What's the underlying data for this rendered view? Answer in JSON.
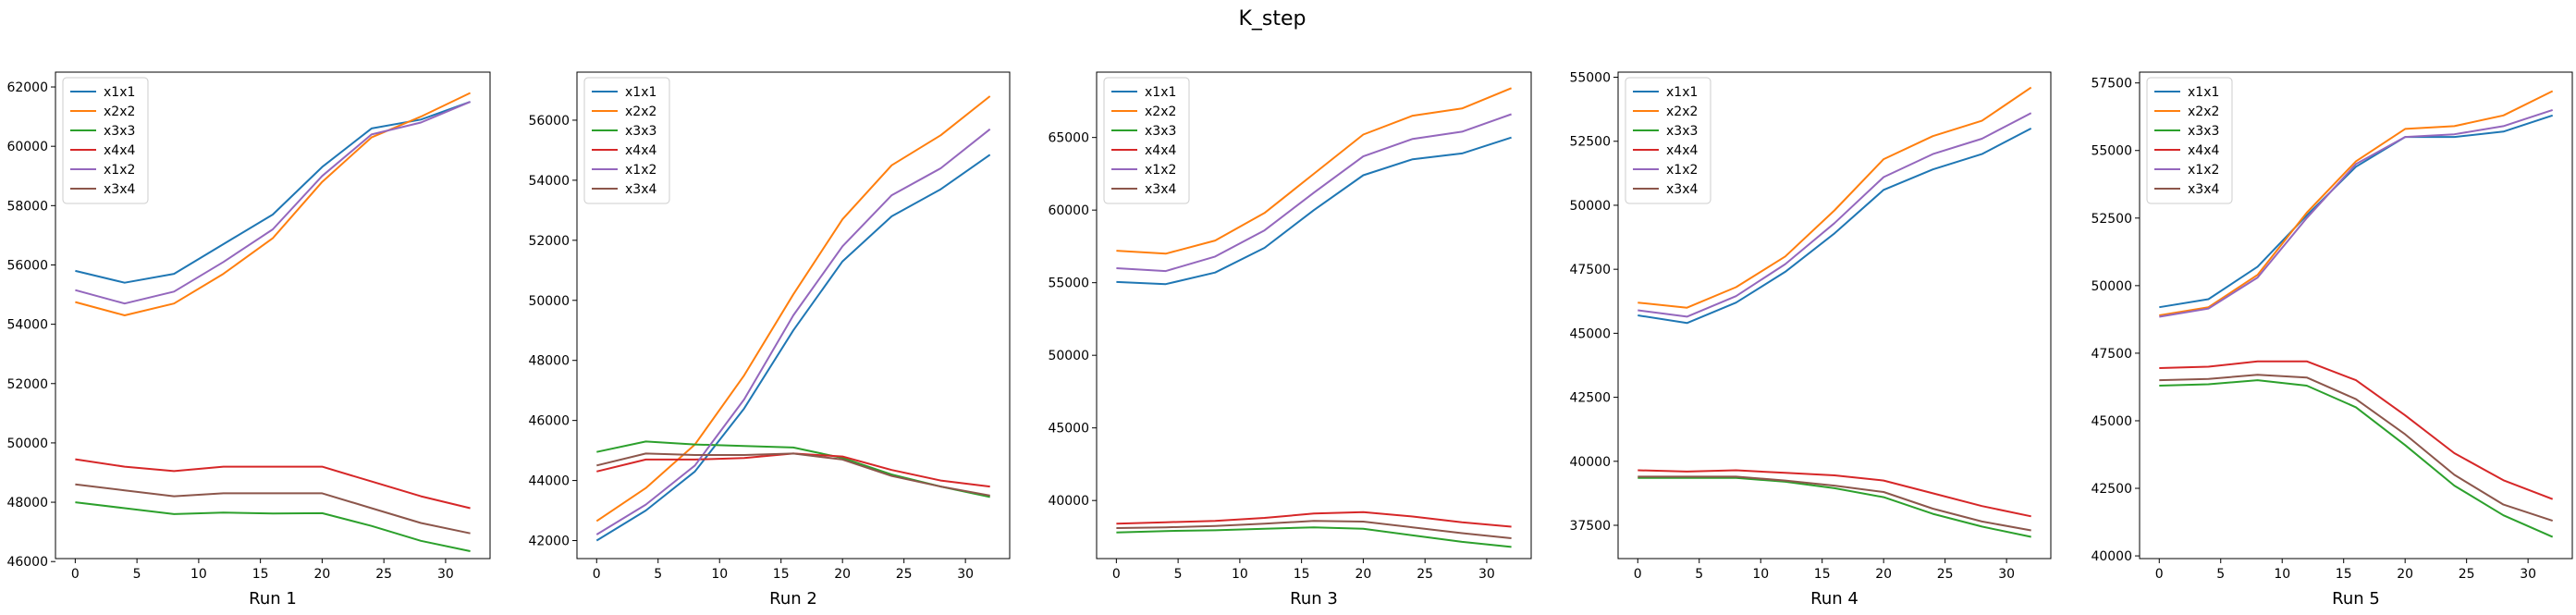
{
  "figure": {
    "title": "K_step"
  },
  "chart_data": [
    {
      "type": "line",
      "xlabel": "Run 1",
      "x": [
        0,
        4,
        8,
        12,
        16,
        20,
        24,
        28,
        32
      ],
      "xticks": [
        0,
        5,
        10,
        15,
        20,
        25,
        30
      ],
      "xlim": [
        -1.6,
        33.6
      ],
      "ylim": [
        46100,
        62500
      ],
      "yticks": [
        46000,
        48000,
        50000,
        52000,
        54000,
        56000,
        58000,
        60000,
        62000
      ],
      "legend_position": "upper-left",
      "series": [
        {
          "name": "x1x1",
          "color": "#1f77b4",
          "values": [
            55800,
            55400,
            55700,
            56700,
            57700,
            59300,
            60600,
            60900,
            61500
          ]
        },
        {
          "name": "x2x2",
          "color": "#ff7f0e",
          "values": [
            54750,
            54300,
            54700,
            55700,
            56900,
            58800,
            60300,
            61000,
            61800
          ]
        },
        {
          "name": "x3x3",
          "color": "#2ca02c",
          "values": [
            48000,
            47800,
            47600,
            47650,
            47620,
            47630,
            47200,
            46700,
            46350
          ]
        },
        {
          "name": "x4x4",
          "color": "#d62728",
          "values": [
            49450,
            49200,
            49050,
            49200,
            49200,
            49200,
            48700,
            48200,
            47800
          ]
        },
        {
          "name": "x1x2",
          "color": "#9467bd",
          "values": [
            55150,
            54700,
            55100,
            56100,
            57200,
            59000,
            60400,
            60800,
            61500
          ]
        },
        {
          "name": "x3x4",
          "color": "#8c564b",
          "values": [
            48600,
            48400,
            48200,
            48300,
            48300,
            48300,
            47800,
            47300,
            46950
          ]
        }
      ]
    },
    {
      "type": "line",
      "xlabel": "Run 2",
      "x": [
        0,
        4,
        8,
        12,
        16,
        20,
        24,
        28,
        32
      ],
      "xticks": [
        0,
        5,
        10,
        15,
        20,
        25,
        30
      ],
      "xlim": [
        -1.6,
        33.6
      ],
      "ylim": [
        41400,
        57600
      ],
      "yticks": [
        42000,
        44000,
        46000,
        48000,
        50000,
        52000,
        54000,
        56000
      ],
      "legend_position": "upper-left",
      "series": [
        {
          "name": "x1x1",
          "color": "#1f77b4",
          "values": [
            42000,
            43000,
            44300,
            46400,
            49000,
            51300,
            52800,
            53700,
            54850
          ]
        },
        {
          "name": "x2x2",
          "color": "#ff7f0e",
          "values": [
            42650,
            43750,
            45200,
            47500,
            50200,
            52700,
            54500,
            55500,
            56800
          ]
        },
        {
          "name": "x3x3",
          "color": "#2ca02c",
          "values": [
            44950,
            45300,
            45200,
            45150,
            45100,
            44750,
            44200,
            43800,
            43450
          ]
        },
        {
          "name": "x4x4",
          "color": "#d62728",
          "values": [
            44300,
            44700,
            44700,
            44750,
            44900,
            44800,
            44350,
            44000,
            43800
          ]
        },
        {
          "name": "x1x2",
          "color": "#9467bd",
          "values": [
            42200,
            43200,
            44500,
            46700,
            49500,
            51800,
            53500,
            54400,
            55700
          ]
        },
        {
          "name": "x3x4",
          "color": "#8c564b",
          "values": [
            44500,
            44900,
            44850,
            44850,
            44900,
            44700,
            44150,
            43800,
            43500
          ]
        }
      ]
    },
    {
      "type": "line",
      "xlabel": "Run 3",
      "x": [
        0,
        4,
        8,
        12,
        16,
        20,
        24,
        28,
        32
      ],
      "xticks": [
        0,
        5,
        10,
        15,
        20,
        25,
        30
      ],
      "xlim": [
        -1.6,
        33.6
      ],
      "ylim": [
        36000,
        69500
      ],
      "yticks": [
        40000,
        45000,
        50000,
        55000,
        60000,
        65000
      ],
      "legend_position": "upper-left",
      "series": [
        {
          "name": "x1x1",
          "color": "#1f77b4",
          "values": [
            55050,
            54900,
            55700,
            57400,
            60000,
            62400,
            63500,
            63900,
            65000
          ]
        },
        {
          "name": "x2x2",
          "color": "#ff7f0e",
          "values": [
            57200,
            57000,
            57900,
            59800,
            62500,
            65200,
            66500,
            67000,
            68400
          ]
        },
        {
          "name": "x3x3",
          "color": "#2ca02c",
          "values": [
            37800,
            37900,
            37950,
            38050,
            38150,
            38050,
            37600,
            37150,
            36800
          ]
        },
        {
          "name": "x4x4",
          "color": "#d62728",
          "values": [
            38400,
            38500,
            38600,
            38800,
            39100,
            39200,
            38900,
            38500,
            38200
          ]
        },
        {
          "name": "x1x2",
          "color": "#9467bd",
          "values": [
            56000,
            55800,
            56800,
            58600,
            61200,
            63700,
            64900,
            65400,
            66600
          ]
        },
        {
          "name": "x3x4",
          "color": "#8c564b",
          "values": [
            38100,
            38150,
            38250,
            38400,
            38600,
            38550,
            38150,
            37750,
            37400
          ]
        }
      ]
    },
    {
      "type": "line",
      "xlabel": "Run 4",
      "x": [
        0,
        4,
        8,
        12,
        16,
        20,
        24,
        28,
        32
      ],
      "xticks": [
        0,
        5,
        10,
        15,
        20,
        25,
        30
      ],
      "xlim": [
        -1.6,
        33.6
      ],
      "ylim": [
        36200,
        55200
      ],
      "yticks": [
        37500,
        40000,
        42500,
        45000,
        47500,
        50000,
        52500,
        55000
      ],
      "legend_position": "upper-left",
      "series": [
        {
          "name": "x1x1",
          "color": "#1f77b4",
          "values": [
            45700,
            45400,
            46200,
            47400,
            48900,
            50600,
            51400,
            52000,
            53000
          ]
        },
        {
          "name": "x2x2",
          "color": "#ff7f0e",
          "values": [
            46200,
            46000,
            46800,
            48000,
            49800,
            51800,
            52700,
            53300,
            54600
          ]
        },
        {
          "name": "x3x3",
          "color": "#2ca02c",
          "values": [
            39350,
            39350,
            39350,
            39200,
            38950,
            38600,
            37950,
            37450,
            37050
          ]
        },
        {
          "name": "x4x4",
          "color": "#d62728",
          "values": [
            39650,
            39600,
            39650,
            39550,
            39450,
            39250,
            38750,
            38250,
            37850
          ]
        },
        {
          "name": "x1x2",
          "color": "#9467bd",
          "values": [
            45900,
            45650,
            46450,
            47700,
            49300,
            51100,
            52000,
            52600,
            53600
          ]
        },
        {
          "name": "x3x4",
          "color": "#8c564b",
          "values": [
            39400,
            39400,
            39400,
            39250,
            39050,
            38800,
            38150,
            37650,
            37300
          ]
        }
      ]
    },
    {
      "type": "line",
      "xlabel": "Run 5",
      "x": [
        0,
        4,
        8,
        12,
        16,
        20,
        24,
        28,
        32
      ],
      "xticks": [
        0,
        5,
        10,
        15,
        20,
        25,
        30
      ],
      "xlim": [
        -1.6,
        33.6
      ],
      "ylim": [
        39900,
        57900
      ],
      "yticks": [
        40000,
        42500,
        45000,
        47500,
        50000,
        52500,
        55000,
        57500
      ],
      "legend_position": "upper-left",
      "series": [
        {
          "name": "x1x1",
          "color": "#1f77b4",
          "values": [
            49200,
            49500,
            50700,
            52600,
            54400,
            55500,
            55500,
            55700,
            56300
          ]
        },
        {
          "name": "x2x2",
          "color": "#ff7f0e",
          "values": [
            48900,
            49200,
            50400,
            52700,
            54600,
            55800,
            55900,
            56300,
            57200
          ]
        },
        {
          "name": "x3x3",
          "color": "#2ca02c",
          "values": [
            46300,
            46350,
            46500,
            46300,
            45500,
            44100,
            42600,
            41500,
            40700
          ]
        },
        {
          "name": "x4x4",
          "color": "#d62728",
          "values": [
            46950,
            47000,
            47200,
            47200,
            46500,
            45200,
            43800,
            42800,
            42100
          ]
        },
        {
          "name": "x1x2",
          "color": "#9467bd",
          "values": [
            48850,
            49150,
            50300,
            52500,
            54500,
            55500,
            55600,
            55900,
            56500
          ]
        },
        {
          "name": "x3x4",
          "color": "#8c564b",
          "values": [
            46500,
            46550,
            46700,
            46600,
            45800,
            44500,
            43000,
            41900,
            41300
          ]
        }
      ]
    }
  ]
}
